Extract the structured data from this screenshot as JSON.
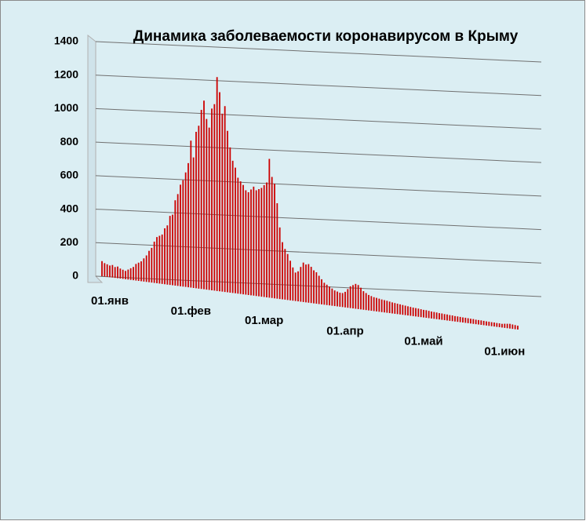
{
  "chart_data": {
    "type": "bar",
    "title": "Динамика заболеваемости коронавирусом в Крыму",
    "color": "#cc0000",
    "grid": true,
    "ylim": [
      0,
      1400
    ],
    "yticks": [
      0,
      200,
      400,
      600,
      800,
      1000,
      1200,
      1400
    ],
    "categories": [
      "01.янв",
      null,
      null,
      null,
      null,
      null,
      null,
      null,
      null,
      null,
      null,
      null,
      null,
      null,
      null,
      null,
      null,
      null,
      null,
      null,
      null,
      null,
      null,
      null,
      null,
      null,
      null,
      null,
      null,
      null,
      null,
      "01.фев",
      null,
      null,
      null,
      null,
      null,
      null,
      null,
      null,
      null,
      null,
      null,
      null,
      null,
      null,
      null,
      null,
      null,
      null,
      null,
      null,
      null,
      null,
      null,
      null,
      null,
      null,
      null,
      "01.мар",
      null,
      null,
      null,
      null,
      null,
      null,
      null,
      null,
      null,
      null,
      null,
      null,
      null,
      null,
      null,
      null,
      null,
      null,
      null,
      null,
      null,
      null,
      null,
      null,
      null,
      null,
      null,
      null,
      null,
      null,
      "01.апр",
      null,
      null,
      null,
      null,
      null,
      null,
      null,
      null,
      null,
      null,
      null,
      null,
      null,
      null,
      null,
      null,
      null,
      null,
      null,
      null,
      null,
      null,
      null,
      null,
      null,
      null,
      null,
      null,
      null,
      "01.май",
      null,
      null,
      null,
      null,
      null,
      null,
      null,
      null,
      null,
      null,
      null,
      null,
      null,
      null,
      null,
      null,
      null,
      null,
      null,
      null,
      null,
      null,
      null,
      null,
      null,
      null,
      null,
      null,
      null,
      null,
      "01.июн",
      null,
      null,
      null,
      null,
      null,
      null,
      null,
      null
    ],
    "values": [
      90,
      80,
      75,
      70,
      75,
      65,
      70,
      60,
      55,
      50,
      60,
      70,
      80,
      100,
      110,
      120,
      140,
      160,
      190,
      210,
      250,
      280,
      290,
      300,
      340,
      360,
      420,
      430,
      520,
      560,
      620,
      650,
      700,
      760,
      900,
      800,
      960,
      1000,
      1100,
      1160,
      1050,
      1000,
      1120,
      1150,
      1320,
      1230,
      1100,
      1150,
      1000,
      900,
      820,
      780,
      720,
      700,
      680,
      650,
      640,
      660,
      680,
      660,
      670,
      680,
      700,
      720,
      870,
      760,
      720,
      600,
      450,
      360,
      320,
      290,
      250,
      210,
      180,
      190,
      220,
      250,
      240,
      245,
      230,
      210,
      200,
      180,
      160,
      140,
      130,
      120,
      110,
      100,
      95,
      90,
      90,
      100,
      120,
      140,
      150,
      160,
      155,
      140,
      120,
      110,
      100,
      95,
      90,
      88,
      85,
      82,
      80,
      78,
      75,
      72,
      70,
      68,
      66,
      64,
      62,
      60,
      58,
      56,
      55,
      54,
      52,
      50,
      50,
      48,
      46,
      45,
      44,
      42,
      42,
      40,
      40,
      38,
      38,
      36,
      36,
      35,
      34,
      34,
      33,
      32,
      32,
      30,
      30,
      30,
      29,
      28,
      28,
      27,
      27,
      26,
      26,
      25,
      28,
      30,
      32,
      30,
      28,
      26
    ]
  }
}
